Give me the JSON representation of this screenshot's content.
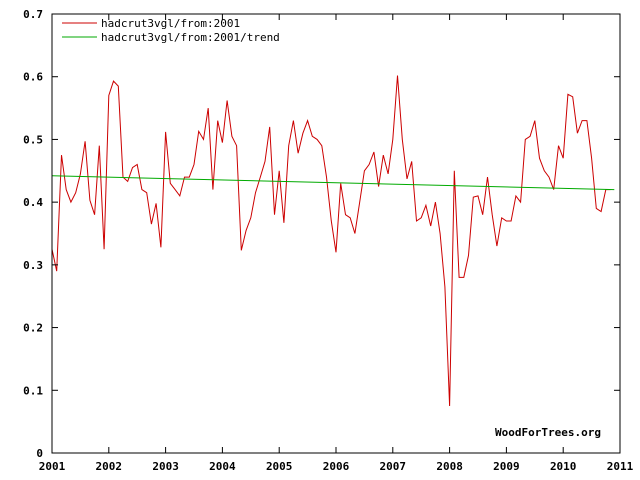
{
  "chart_data": {
    "type": "line",
    "title": "",
    "xlabel": "",
    "ylabel": "",
    "xlim": [
      2001,
      2011
    ],
    "ylim": [
      0,
      0.7
    ],
    "grid": false,
    "legend_position": "top-left",
    "x_ticks": [
      "2001",
      "2002",
      "2003",
      "2004",
      "2005",
      "2006",
      "2007",
      "2008",
      "2009",
      "2010",
      "2011"
    ],
    "y_ticks": [
      "0",
      "0.1",
      "0.2",
      "0.3",
      "0.4",
      "0.5",
      "0.6",
      "0.7"
    ],
    "watermark": "WoodForTrees.org",
    "series": [
      {
        "name": "hadcrut3vgl/from:2001",
        "color": "#cc0000",
        "x": [
          2001.0,
          2001.083,
          2001.167,
          2001.25,
          2001.333,
          2001.417,
          2001.5,
          2001.583,
          2001.667,
          2001.75,
          2001.833,
          2001.917,
          2002.0,
          2002.083,
          2002.167,
          2002.25,
          2002.333,
          2002.417,
          2002.5,
          2002.583,
          2002.667,
          2002.75,
          2002.833,
          2002.917,
          2003.0,
          2003.083,
          2003.167,
          2003.25,
          2003.333,
          2003.417,
          2003.5,
          2003.583,
          2003.667,
          2003.75,
          2003.833,
          2003.917,
          2004.0,
          2004.083,
          2004.167,
          2004.25,
          2004.333,
          2004.417,
          2004.5,
          2004.583,
          2004.667,
          2004.75,
          2004.833,
          2004.917,
          2005.0,
          2005.083,
          2005.167,
          2005.25,
          2005.333,
          2005.417,
          2005.5,
          2005.583,
          2005.667,
          2005.75,
          2005.833,
          2005.917,
          2006.0,
          2006.083,
          2006.167,
          2006.25,
          2006.333,
          2006.417,
          2006.5,
          2006.583,
          2006.667,
          2006.75,
          2006.833,
          2006.917,
          2007.0,
          2007.083,
          2007.167,
          2007.25,
          2007.333,
          2007.417,
          2007.5,
          2007.583,
          2007.667,
          2007.75,
          2007.833,
          2007.917,
          2008.0,
          2008.083,
          2008.167,
          2008.25,
          2008.333,
          2008.417,
          2008.5,
          2008.583,
          2008.667,
          2008.75,
          2008.833,
          2008.917,
          2009.0,
          2009.083,
          2009.167,
          2009.25,
          2009.333,
          2009.417,
          2009.5,
          2009.583,
          2009.667,
          2009.75,
          2009.833,
          2009.917,
          2010.0,
          2010.083,
          2010.167,
          2010.25,
          2010.333,
          2010.417,
          2010.5,
          2010.583,
          2010.667,
          2010.75,
          2010.833
        ],
        "values": [
          0.325,
          0.29,
          0.475,
          0.42,
          0.4,
          0.415,
          0.445,
          0.497,
          0.403,
          0.38,
          0.49,
          0.325,
          0.57,
          0.593,
          0.585,
          0.44,
          0.433,
          0.455,
          0.46,
          0.42,
          0.415,
          0.365,
          0.398,
          0.328,
          0.512,
          0.43,
          0.42,
          0.41,
          0.44,
          0.44,
          0.46,
          0.513,
          0.5,
          0.55,
          0.42,
          0.53,
          0.495,
          0.562,
          0.505,
          0.49,
          0.323,
          0.355,
          0.375,
          0.415,
          0.44,
          0.465,
          0.52,
          0.38,
          0.45,
          0.367,
          0.49,
          0.53,
          0.478,
          0.51,
          0.53,
          0.505,
          0.5,
          0.49,
          0.44,
          0.37,
          0.32,
          0.43,
          0.38,
          0.375,
          0.35,
          0.4,
          0.45,
          0.46,
          0.48,
          0.425,
          0.475,
          0.445,
          0.5,
          0.602,
          0.5,
          0.437,
          0.465,
          0.37,
          0.375,
          0.395,
          0.362,
          0.4,
          0.35,
          0.265,
          0.075,
          0.45,
          0.28,
          0.28,
          0.315,
          0.408,
          0.41,
          0.38,
          0.44,
          0.38,
          0.33,
          0.375,
          0.37,
          0.37,
          0.41,
          0.4,
          0.5,
          0.505,
          0.53,
          0.47,
          0.45,
          0.44,
          0.42,
          0.49,
          0.47,
          0.572,
          0.568,
          0.51,
          0.53,
          0.53,
          0.47,
          0.39,
          0.385,
          0.42,
          0.42
        ]
      },
      {
        "name": "hadcrut3vgl/from:2001/trend",
        "color": "#00aa00",
        "x": [
          2001.0,
          2010.9
        ],
        "values": [
          0.442,
          0.42
        ]
      }
    ]
  }
}
